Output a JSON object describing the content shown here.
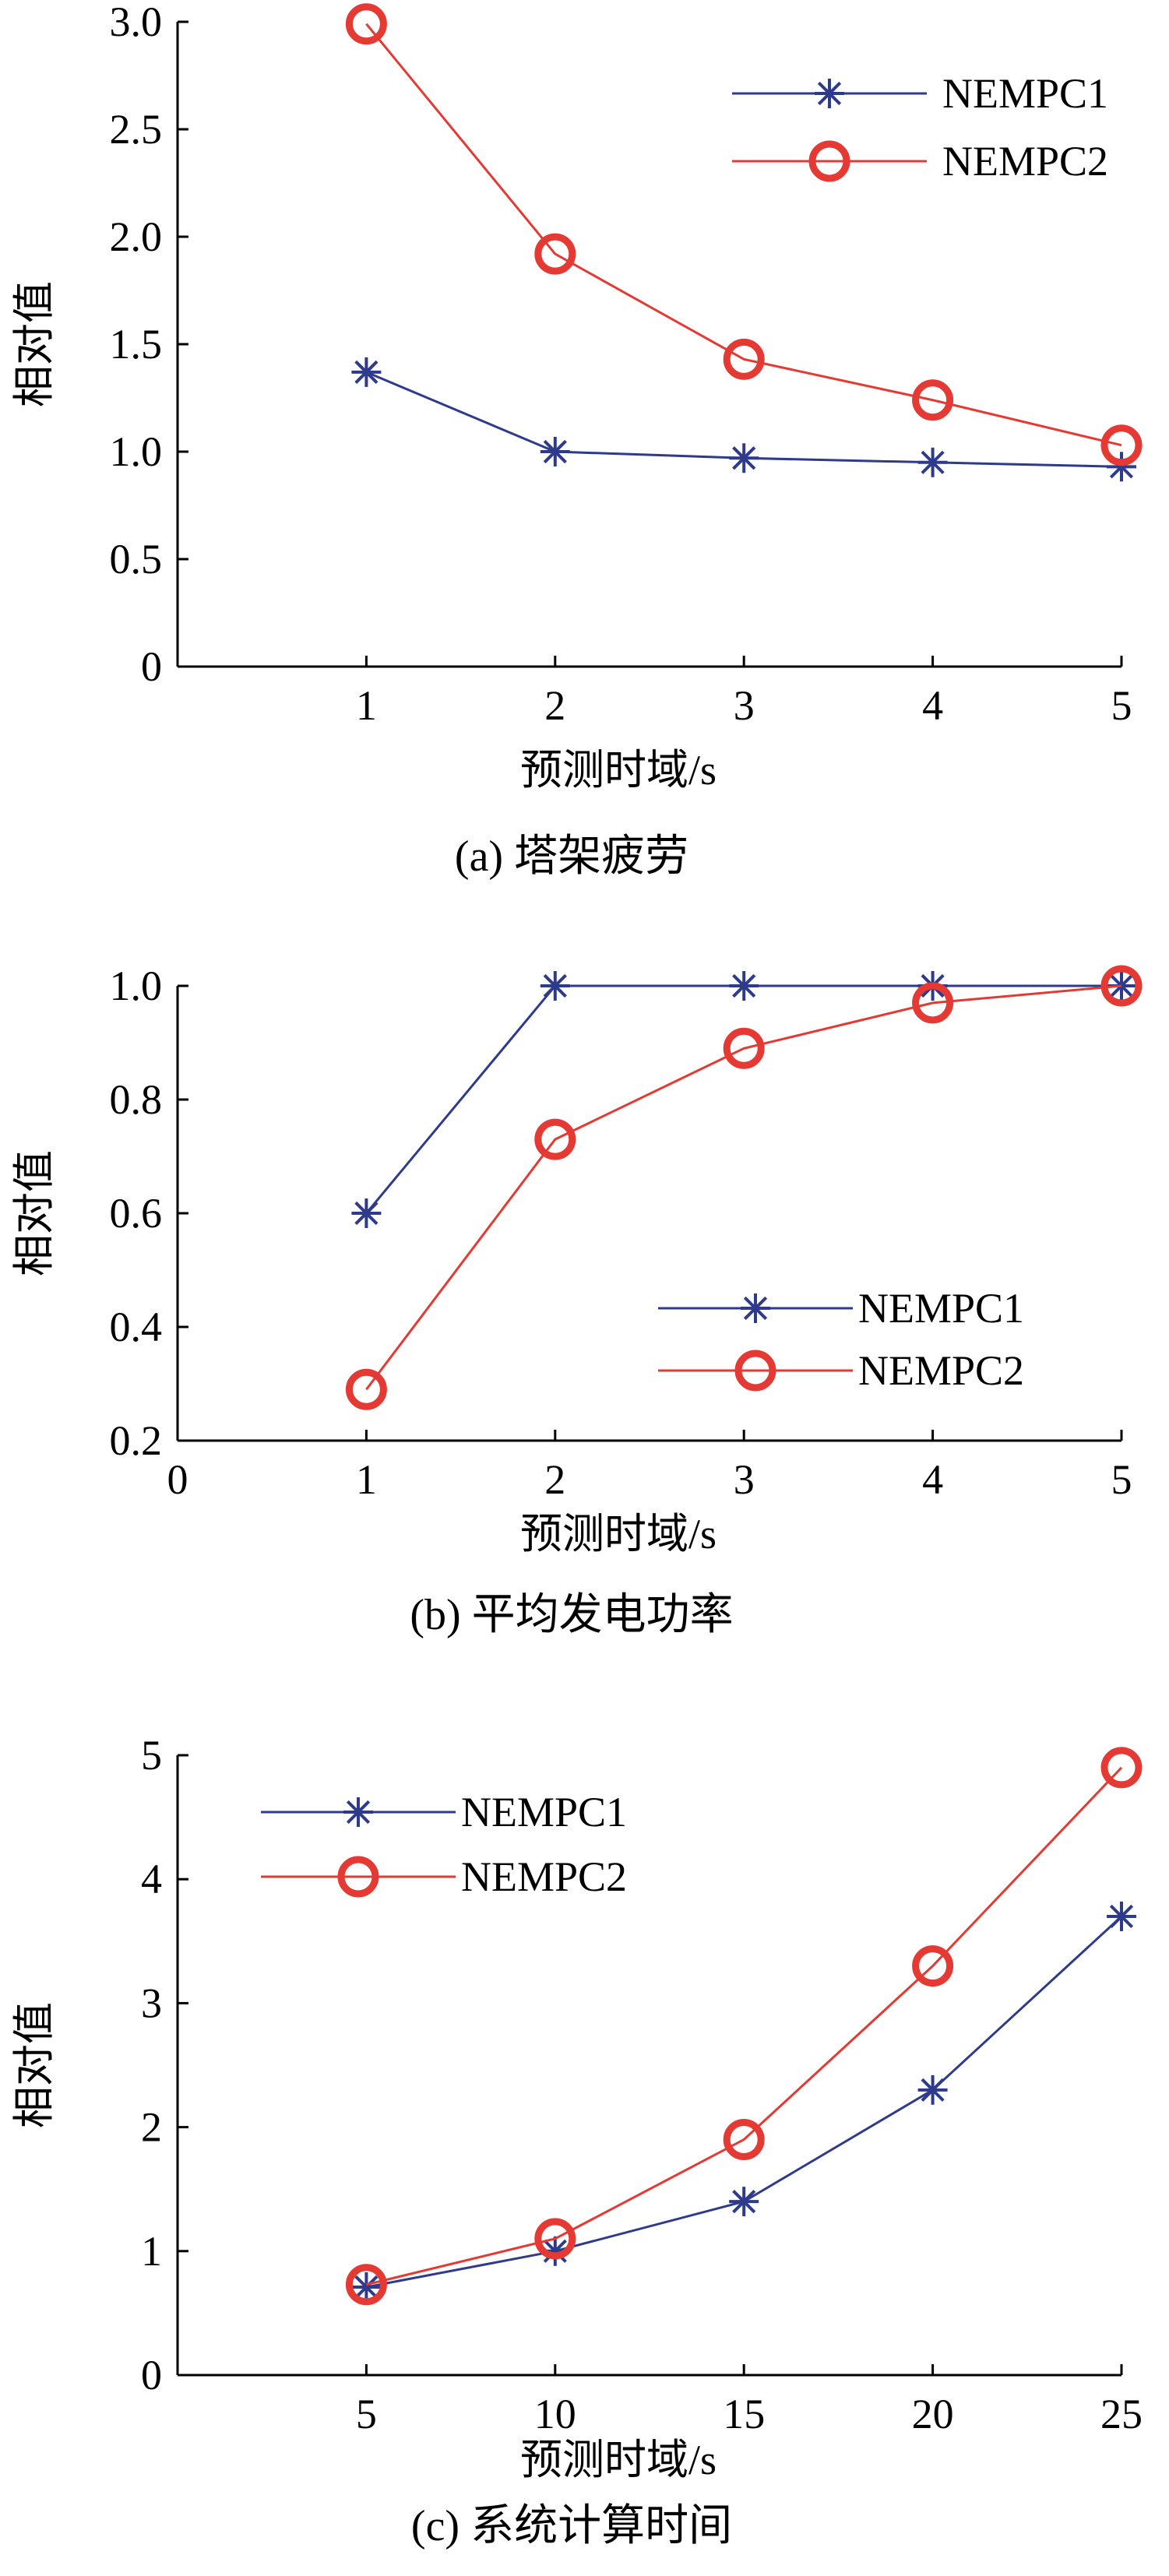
{
  "colors": {
    "NEMPC1": "#2e3a8c",
    "NEMPC2": "#e53a33",
    "axis": "#000000"
  },
  "chart_data": [
    {
      "type": "line",
      "title": "",
      "caption": "(a) 塔架疲劳",
      "xlabel": "预测时域/s",
      "ylabel": "相对值",
      "x": [
        1,
        2,
        3,
        4,
        5
      ],
      "xlim": [
        0,
        5
      ],
      "ylim": [
        0,
        3.0
      ],
      "x_ticks": [
        1,
        2,
        3,
        4,
        5
      ],
      "x_tick_labels": [
        "1",
        "2",
        "3",
        "4",
        "5"
      ],
      "y_ticks": [
        0,
        0.5,
        1.0,
        1.5,
        2.0,
        2.5,
        3.0
      ],
      "y_tick_labels": [
        "0",
        "0.5",
        "1.0",
        "1.5",
        "2.0",
        "2.5",
        "3.0"
      ],
      "grid": false,
      "legend_position": "top-right",
      "series": [
        {
          "name": "NEMPC1",
          "values": [
            1.37,
            1.0,
            0.97,
            0.95,
            0.93
          ],
          "marker": "star",
          "color": "#2e3a8c"
        },
        {
          "name": "NEMPC2",
          "values": [
            2.99,
            1.92,
            1.43,
            1.24,
            1.03
          ],
          "marker": "circle",
          "color": "#e53a33"
        }
      ]
    },
    {
      "type": "line",
      "title": "",
      "caption": "(b) 平均发电功率",
      "xlabel": "预测时域/s",
      "ylabel": "相对值",
      "x": [
        1,
        2,
        3,
        4,
        5
      ],
      "xlim": [
        0,
        5
      ],
      "ylim": [
        0.2,
        1.0
      ],
      "x_ticks": [
        0,
        1,
        2,
        3,
        4,
        5
      ],
      "x_tick_labels": [
        "0",
        "1",
        "2",
        "3",
        "4",
        "5"
      ],
      "y_ticks": [
        0.2,
        0.4,
        0.6,
        0.8,
        1.0
      ],
      "y_tick_labels": [
        "0.2",
        "0.4",
        "0.6",
        "0.8",
        "1.0"
      ],
      "grid": false,
      "legend_position": "bottom-right",
      "series": [
        {
          "name": "NEMPC1",
          "values": [
            0.6,
            1.0,
            1.0,
            1.0,
            1.0
          ],
          "marker": "star",
          "color": "#2e3a8c"
        },
        {
          "name": "NEMPC2",
          "values": [
            0.29,
            0.73,
            0.89,
            0.97,
            1.0
          ],
          "marker": "circle",
          "color": "#e53a33"
        }
      ]
    },
    {
      "type": "line",
      "title": "",
      "caption": "(c) 系统计算时间",
      "xlabel": "预测时域/s",
      "ylabel": "相对值",
      "x": [
        5,
        10,
        15,
        20,
        25
      ],
      "xlim": [
        0,
        25
      ],
      "ylim": [
        0,
        5
      ],
      "x_ticks": [
        5,
        10,
        15,
        20,
        25
      ],
      "x_tick_labels": [
        "5",
        "10",
        "15",
        "20",
        "25"
      ],
      "y_ticks": [
        0,
        1,
        2,
        3,
        4,
        5
      ],
      "y_tick_labels": [
        "0",
        "1",
        "2",
        "3",
        "4",
        "5"
      ],
      "grid": false,
      "legend_position": "top-left",
      "series": [
        {
          "name": "NEMPC1",
          "values": [
            0.71,
            1.0,
            1.4,
            2.3,
            3.7
          ],
          "marker": "star",
          "color": "#2e3a8c"
        },
        {
          "name": "NEMPC2",
          "values": [
            0.73,
            1.1,
            1.9,
            3.3,
            4.9
          ],
          "marker": "circle",
          "color": "#e53a33"
        }
      ]
    }
  ]
}
